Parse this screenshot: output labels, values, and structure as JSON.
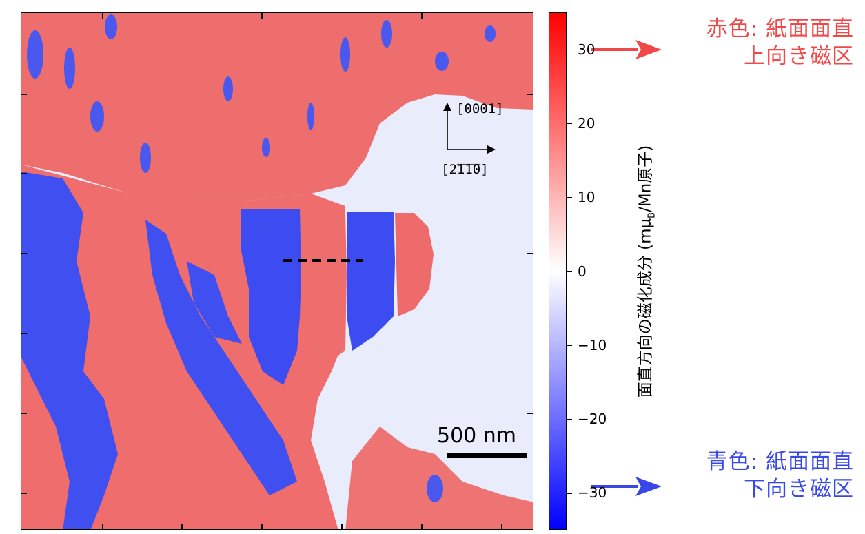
{
  "colorbar": {
    "tick_labels": [
      "30",
      "20",
      "10",
      "0",
      "−10",
      "−20",
      "−30"
    ],
    "ticks": [
      30,
      20,
      10,
      0,
      -10,
      -20,
      -30
    ],
    "range": [
      -35,
      35
    ],
    "colors": {
      "positive": "#ff0000",
      "zero": "#ffffff",
      "negative": "#0000ff"
    },
    "axis_label_main": "面直方向の磁化成分 (mμ",
    "axis_label_sub": "B",
    "axis_label_tail": "/Mn原子)"
  },
  "annotations": {
    "red_line1": "赤色: 紙面面直",
    "red_line2": "上向き磁区",
    "blue_line1": "青色: 紙面面直",
    "blue_line2": "下向き磁区",
    "red_color": "#f04848",
    "blue_color": "#3848e8"
  },
  "scale_bar": {
    "label": "500 nm"
  },
  "directions": {
    "vertical": "[0001]",
    "horizontal": "[2̅1̅1̅0]"
  },
  "image_colors": {
    "red_domain": "#ee6a6a",
    "blue_domain": "#3e4cf0",
    "background": "#e9ecfb"
  }
}
